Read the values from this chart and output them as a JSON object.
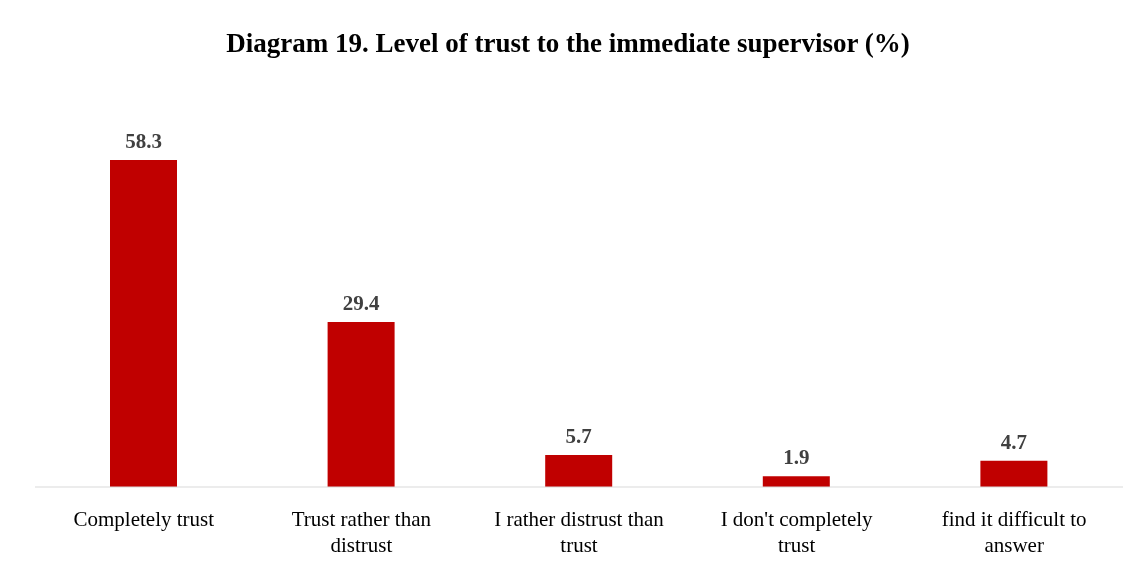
{
  "chart_data": {
    "type": "bar",
    "title": "Diagram 19. Level of trust to the immediate supervisor (%)",
    "categories": [
      "Completely trust",
      "Trust rather than distrust",
      "I rather distrust than trust",
      "I don't completely trust",
      "find it difficult to answer"
    ],
    "values": [
      58.3,
      29.4,
      5.7,
      1.9,
      4.7
    ],
    "color": "#c00000",
    "data_labels": true,
    "grid": false,
    "legend": false
  }
}
